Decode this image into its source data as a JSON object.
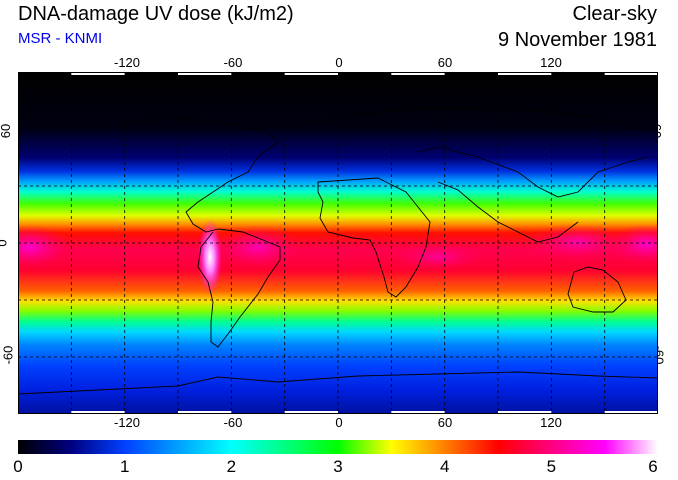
{
  "header": {
    "title": "DNA-damage UV dose (kJ/m2)",
    "subtitle": "MSR - KNMI",
    "mode": "Clear-sky",
    "date": "9 November 1981"
  },
  "colors": {
    "title_text": "#000000",
    "subtitle_text": "#0000ee",
    "frame": "#000000",
    "background": "#ffffff"
  },
  "map": {
    "projection": "equirectangular",
    "lon_range": [
      -180,
      180
    ],
    "lat_range": [
      -90,
      90
    ],
    "x_ticks": [
      "-120",
      "-60",
      "0",
      "60",
      "120"
    ],
    "y_ticks": [
      "60",
      "0",
      "-60"
    ],
    "grid": "dashed, every 30 degrees",
    "field": "clear-sky DNA-damage UV dose, highest in the tropics/southern subtropics, near zero in the northern high latitudes"
  },
  "colorbar": {
    "range": [
      0,
      6
    ],
    "labels": [
      "0",
      "1",
      "2",
      "3",
      "4",
      "5",
      "6"
    ],
    "stops": [
      {
        "value": 0.0,
        "color": "#000000"
      },
      {
        "value": 0.5,
        "color": "#000080"
      },
      {
        "value": 1.0,
        "color": "#0040ff"
      },
      {
        "value": 1.5,
        "color": "#00a0ff"
      },
      {
        "value": 2.0,
        "color": "#00ffff"
      },
      {
        "value": 2.5,
        "color": "#00ff80"
      },
      {
        "value": 3.0,
        "color": "#00ff00"
      },
      {
        "value": 3.5,
        "color": "#ffff00"
      },
      {
        "value": 4.0,
        "color": "#ff8000"
      },
      {
        "value": 4.5,
        "color": "#ff0000"
      },
      {
        "value": 5.0,
        "color": "#ff0080"
      },
      {
        "value": 5.5,
        "color": "#ff00ff"
      },
      {
        "value": 6.0,
        "color": "#ffffff"
      }
    ]
  }
}
